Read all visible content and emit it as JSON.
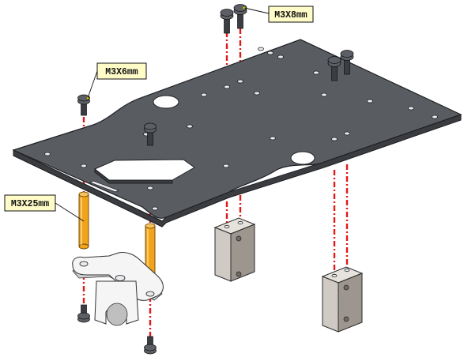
{
  "callouts": {
    "m3x8": "M3X8mm",
    "m3x6": "M3X6mm",
    "m3x25": "M3X25mm"
  },
  "colors": {
    "guide_line": "#e01a1a",
    "plate": "#595c61",
    "standoff": "#f2a31c",
    "callout_fill": "#fffcc8"
  }
}
